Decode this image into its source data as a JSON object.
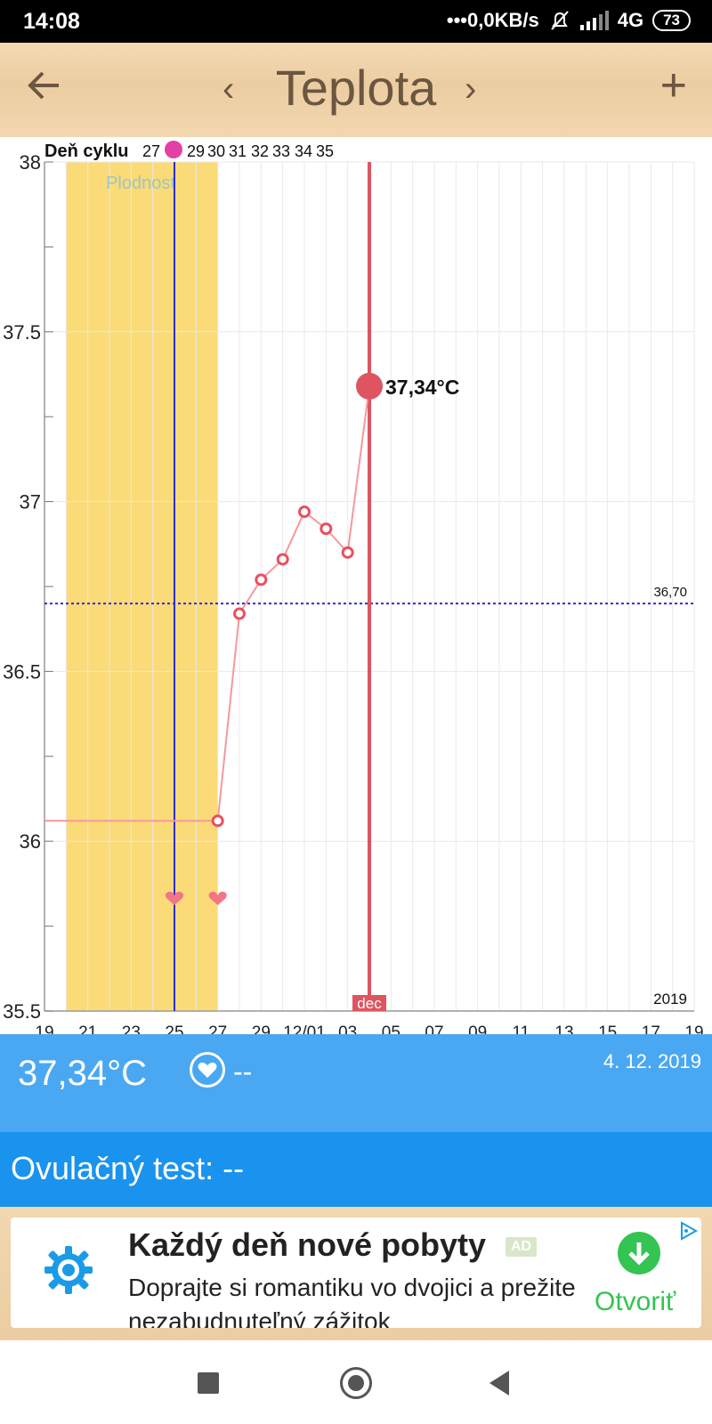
{
  "status_bar": {
    "time": "14:08",
    "network": "•••0,0KB/s",
    "network_type": "4G",
    "battery": "73"
  },
  "header": {
    "title": "Teplota",
    "prev_label": "‹",
    "next_label": "›",
    "add_label": "+"
  },
  "chart_data": {
    "type": "line",
    "cycle_label": "Deň cyklu",
    "cycle_day_labels": [
      "27",
      "29",
      "30",
      "31",
      "32",
      "33",
      "34",
      "35"
    ],
    "fertile_label": "Plodnost",
    "y_ticks": [
      "38",
      "37.5",
      "37",
      "36.5",
      "36",
      "35.5"
    ],
    "ylim": [
      35.5,
      38
    ],
    "x_ticks": [
      "19",
      "21",
      "23",
      "25",
      "27",
      "29",
      "12/01",
      "03",
      "05",
      "07",
      "09",
      "11",
      "13",
      "15",
      "17",
      "19"
    ],
    "xlim": [
      "2019-11-19",
      "2019-12-19"
    ],
    "year_label": "2019",
    "month_marker": "dec",
    "coverline_value": 36.7,
    "coverline_label": "36,70",
    "fertile_window": [
      "2019-11-20",
      "2019-11-27"
    ],
    "ovulation_day": "2019-11-25",
    "selected_day": "2019-12-04",
    "selected_label": "37,34°C",
    "intercourse_days": [
      "2019-11-25",
      "2019-11-27"
    ],
    "series": [
      {
        "x": [
          "2019-11-19",
          "2019-11-27",
          "2019-11-28",
          "2019-11-29",
          "2019-11-30",
          "2019-12-01",
          "2019-12-02",
          "2019-12-03",
          "2019-12-04"
        ],
        "values": [
          36.06,
          36.06,
          36.67,
          36.77,
          36.83,
          36.97,
          36.92,
          36.85,
          37.34
        ]
      }
    ],
    "colors": {
      "fertile": "#fadb78",
      "line": "#f49a9a",
      "point": "#e8505f",
      "selected": "#de5560",
      "ovulation_line": "#2d2bdc",
      "coverline": "#2d2bdc",
      "cycle_marker": "#e43fa5"
    }
  },
  "info": {
    "temperature": "37,34°C",
    "intercourse_value": "--",
    "date": "4. 12. 2019",
    "ovulation_test": "Ovulačný test: --"
  },
  "ad": {
    "headline": "Každý deň nové pobyty",
    "badge": "AD",
    "description": "Doprajte si romantiku vo dvojici a prežite nezabudnuteľný zážitok",
    "cta": "Otvoriť"
  },
  "colors": {
    "info_band": "#4aa8f2",
    "ovulation_band": "#1a93ee",
    "header_wood": "#eccda2",
    "header_text": "#6b5640",
    "cta_green": "#33c452"
  }
}
